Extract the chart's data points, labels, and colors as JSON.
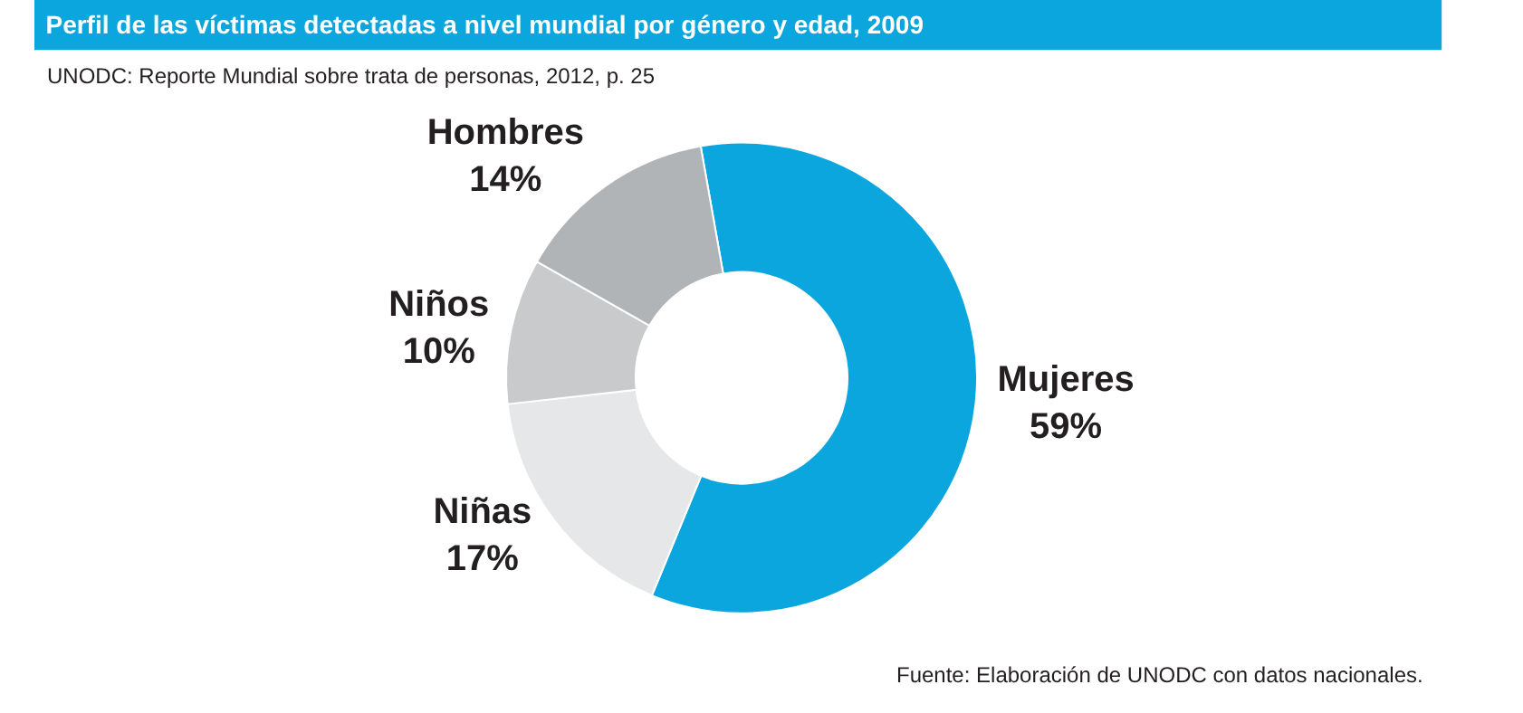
{
  "chart_data": {
    "type": "donut",
    "title": "Perfil de las víctimas detectadas a nivel mundial por género y edad, 2009",
    "subtitle": "UNODC: Reporte Mundial sobre trata de personas, 2012, p. 25",
    "categories": [
      "Mujeres",
      "Niñas",
      "Niños",
      "Hombres"
    ],
    "values": [
      59,
      17,
      10,
      14
    ],
    "value_labels": [
      "59%",
      "17%",
      "10%",
      "14%"
    ],
    "colors": [
      "#0aa6dd",
      "#e6e7e8",
      "#c8cacc",
      "#b1b4b7"
    ],
    "legend": false,
    "annotations": [
      "Fuente: Elaboración de UNODC con datos nacionales."
    ]
  }
}
